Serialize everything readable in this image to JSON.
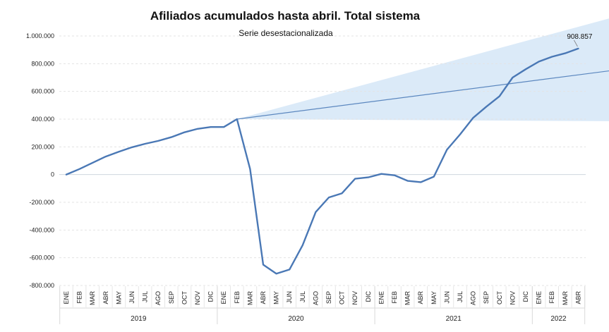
{
  "chart_data": {
    "type": "line",
    "title": "Afiliados acumulados hasta abril. Total sistema",
    "subtitle": "Serie desestacionalizada",
    "ylim": [
      -800000,
      1000000
    ],
    "yticks": [
      1000000,
      800000,
      600000,
      400000,
      200000,
      0,
      -200000,
      -400000,
      -600000,
      -800000
    ],
    "ytick_labels": [
      "1.000.000",
      "800.000",
      "600.000",
      "400.000",
      "200.000",
      "0",
      "-200.000",
      "-400.000",
      "-600.000",
      "-800.000"
    ],
    "grid": true,
    "categories": [
      "ENE",
      "FEB",
      "MAR",
      "ABR",
      "MAY",
      "JUN",
      "JUL",
      "AGO",
      "SEP",
      "OCT",
      "NOV",
      "DIC",
      "ENE",
      "FEB",
      "MAR",
      "ABR",
      "MAY",
      "JUN",
      "JUL",
      "AGO",
      "SEP",
      "OCT",
      "NOV",
      "DIC",
      "ENE",
      "FEB",
      "MAR",
      "ABR",
      "MAY",
      "JUN",
      "JUL",
      "AGO",
      "SEP",
      "OCT",
      "NOV",
      "DIC",
      "ENE",
      "FEB",
      "MAR",
      "ABR"
    ],
    "years": [
      {
        "label": "2019",
        "start": 0,
        "count": 12
      },
      {
        "label": "2020",
        "start": 12,
        "count": 12
      },
      {
        "label": "2021",
        "start": 24,
        "count": 12
      },
      {
        "label": "2022",
        "start": 36,
        "count": 4
      }
    ],
    "series": [
      {
        "name": "Afiliados acumulados",
        "color": "#4a78b5",
        "values": [
          0,
          40000,
          85000,
          130000,
          165000,
          197000,
          222000,
          243000,
          270000,
          305000,
          330000,
          343000,
          343000,
          400000,
          40000,
          -650000,
          -715000,
          -685000,
          -510000,
          -270000,
          -165000,
          -135000,
          -30000,
          -20000,
          5000,
          -5000,
          -45000,
          -55000,
          -15000,
          180000,
          290000,
          410000,
          490000,
          565000,
          700000,
          760000,
          815000,
          850000,
          875000,
          908857
        ]
      }
    ],
    "trend": {
      "start_index": 13,
      "start_value": 400000,
      "end_index": 41.5,
      "end_value": 750000,
      "upper_end_value": 1130000,
      "lower_end_value": 385000,
      "line_color": "#5b87bf",
      "fill_color": "#cfe3f6"
    },
    "annotation": {
      "text": "908.857",
      "index": 39,
      "value": 908857
    }
  }
}
